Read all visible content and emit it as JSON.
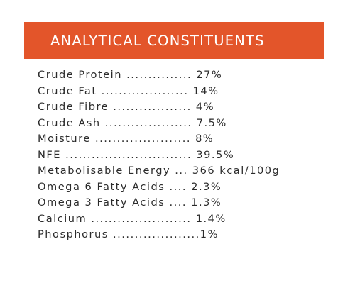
{
  "header": {
    "title": "ANALYTICAL CONSTITUENTS"
  },
  "constituents": [
    "Crude Protein ............... 27%",
    "Crude Fat .................... 14%",
    "Crude Fibre .................. 4%",
    "Crude Ash .................... 7.5%",
    "Moisture ...................... 8%",
    "NFE ............................. 39.5%",
    "Metabolisable Energy ... 366 kcal/100g",
    "Omega 6 Fatty Acids .... 2.3%",
    "Omega 3 Fatty Acids .... 1.3%",
    "Calcium ....................... 1.4%",
    "Phosphorus ....................1%"
  ],
  "colors": {
    "header_background": "#e3552a",
    "header_text": "#ffffff",
    "body_text": "#2b2b2b"
  }
}
